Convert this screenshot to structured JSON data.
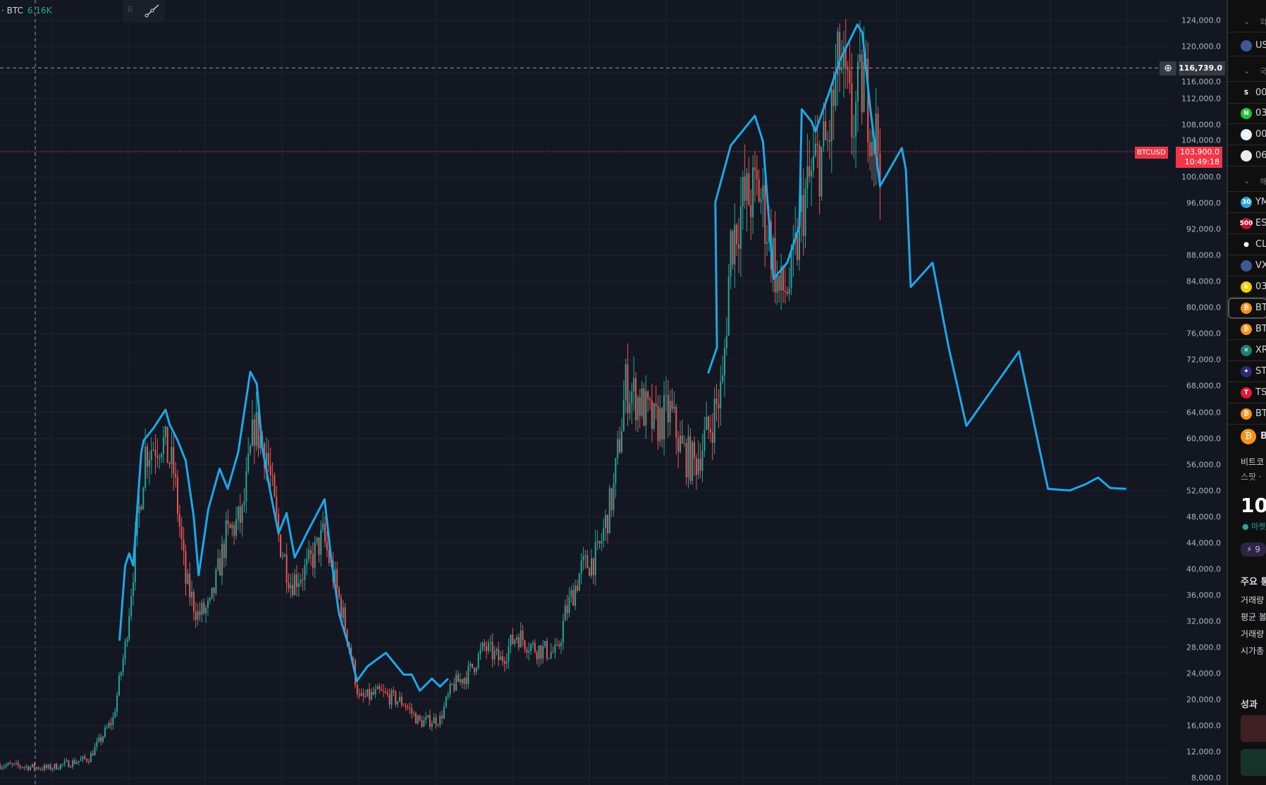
{
  "legend": {
    "symbol": "· BTC",
    "volume": "6.16K"
  },
  "toolbar": {
    "drag_icon": "drag-handle-icon",
    "draw_icon": "trend-line-icon"
  },
  "crosshair": {
    "price_label": "116,739.0",
    "price": 116739
  },
  "last_price": {
    "symbol": "BTCUSD",
    "price": "103,900.0",
    "countdown": "10:49:18",
    "value": 103900
  },
  "colors": {
    "background": "#131722",
    "up": "#26a69a",
    "down": "#ef5350",
    "drawing": "#1ea7e8",
    "last_price": "#f23645"
  },
  "chart_data": {
    "type": "candlestick",
    "title": "",
    "ylim": [
      8000,
      124000
    ],
    "y_ticks": [
      "124,000.0",
      "120,000.0",
      "116,000.0",
      "112,000.0",
      "108,000.0",
      "104,000.0",
      "100,000.0",
      "96,000.0",
      "92,000.0",
      "88,000.0",
      "84,000.0",
      "80,000.0",
      "76,000.0",
      "72,000.0",
      "68,000.0",
      "64,000.0",
      "60,000.0",
      "56,000.0",
      "52,000.0",
      "48,000.0",
      "44,000.0",
      "40,000.0",
      "36,000.0",
      "32,000.0",
      "28,000.0",
      "24,000.0",
      "20,000.0",
      "16,000.0",
      "12,000.0",
      "8,000.0"
    ],
    "grid": true,
    "price_path": [
      [
        0,
        10000
      ],
      [
        12,
        9500
      ],
      [
        22,
        11000
      ],
      [
        28,
        17000
      ],
      [
        31,
        28000
      ],
      [
        33,
        40000
      ],
      [
        36,
        58000
      ],
      [
        40,
        60000
      ],
      [
        43,
        55000
      ],
      [
        46,
        38000
      ],
      [
        49,
        33000
      ],
      [
        52,
        34000
      ],
      [
        56,
        45000
      ],
      [
        60,
        48000
      ],
      [
        63,
        62000
      ],
      [
        66,
        58000
      ],
      [
        69,
        45000
      ],
      [
        72,
        38000
      ],
      [
        76,
        40000
      ],
      [
        80,
        45000
      ],
      [
        83,
        38000
      ],
      [
        86,
        30000
      ],
      [
        89,
        20000
      ],
      [
        94,
        21000
      ],
      [
        100,
        19500
      ],
      [
        104,
        16500
      ],
      [
        109,
        17000
      ],
      [
        112,
        22000
      ],
      [
        116,
        24000
      ],
      [
        120,
        28000
      ],
      [
        124,
        26000
      ],
      [
        128,
        30000
      ],
      [
        132,
        28000
      ],
      [
        138,
        27000
      ],
      [
        140,
        33000
      ],
      [
        144,
        40000
      ],
      [
        148,
        42000
      ],
      [
        152,
        52000
      ],
      [
        155,
        68000
      ],
      [
        158,
        66000
      ],
      [
        162,
        62000
      ],
      [
        166,
        64000
      ],
      [
        169,
        58000
      ],
      [
        172,
        56000
      ],
      [
        176,
        62000
      ],
      [
        179,
        68000
      ],
      [
        181,
        90000
      ],
      [
        184,
        96000
      ],
      [
        188,
        98000
      ],
      [
        191,
        90000
      ],
      [
        193,
        82000
      ],
      [
        196,
        84000
      ],
      [
        199,
        96000
      ],
      [
        202,
        102000
      ],
      [
        205,
        105000
      ],
      [
        208,
        118000
      ],
      [
        211,
        108000
      ],
      [
        214,
        115000
      ],
      [
        216,
        108000
      ],
      [
        218,
        104000
      ]
    ],
    "drawing": [
      [
        [
          29.6,
          29021
        ],
        [
          31,
          40523
        ],
        [
          32,
          42378
        ],
        [
          33,
          40523
        ],
        [
          35,
          57837
        ],
        [
          35.6,
          59692
        ],
        [
          38,
          61547
        ],
        [
          41,
          64391
        ],
        [
          42,
          62165
        ],
        [
          44,
          59692
        ],
        [
          46,
          56600
        ],
        [
          48,
          47943
        ],
        [
          49.2,
          39039
        ],
        [
          51.6,
          49180
        ],
        [
          54.4,
          55363
        ],
        [
          56.4,
          52271
        ],
        [
          59,
          57837
        ],
        [
          62,
          70204
        ],
        [
          63.6,
          68348
        ],
        [
          65,
          58455
        ],
        [
          67,
          51654
        ],
        [
          69,
          45470
        ],
        [
          71,
          48561
        ],
        [
          73,
          41759
        ],
        [
          76,
          45470
        ],
        [
          80.4,
          50664
        ],
        [
          82,
          41759
        ],
        [
          84,
          33103
        ],
        [
          86.4,
          28157
        ],
        [
          88.4,
          22838
        ],
        [
          91,
          25064
        ],
        [
          95.6,
          27166
        ],
        [
          100,
          23827
        ],
        [
          102,
          23827
        ],
        [
          104,
          21354
        ],
        [
          107,
          23209
        ],
        [
          109,
          22000
        ],
        [
          111,
          23209
        ]
      ],
      [
        [
          175.4,
          69956
        ],
        [
          177.6,
          73914
        ],
        [
          177.2,
          96174
        ],
        [
          181,
          104831
        ],
        [
          187,
          109407
        ],
        [
          189,
          105449
        ],
        [
          191.6,
          84426
        ],
        [
          195,
          86899
        ],
        [
          198,
          92464
        ],
        [
          198.6,
          110396
        ],
        [
          201,
          108541
        ],
        [
          202,
          107000
        ],
        [
          205,
          112251
        ],
        [
          208,
          117816
        ],
        [
          212.4,
          123382
        ],
        [
          213.6,
          122145
        ],
        [
          215.6,
          110396
        ],
        [
          218,
          98648
        ],
        [
          223.4,
          104460
        ],
        [
          224.4,
          101121
        ],
        [
          225.6,
          83189
        ],
        [
          231,
          86899
        ],
        [
          235,
          73914
        ],
        [
          239.4,
          61918
        ],
        [
          252.4,
          73295
        ],
        [
          256.4,
          61547
        ],
        [
          259.6,
          52271
        ],
        [
          265,
          52024
        ],
        [
          269,
          53000
        ],
        [
          272,
          54000
        ],
        [
          275,
          52400
        ],
        [
          279,
          52271
        ]
      ]
    ]
  },
  "sidebar": {
    "rows": [
      {
        "type": "section",
        "label": "외"
      },
      {
        "type": "item",
        "icon": "us-flag-icon",
        "color": "#3c5a9a",
        "glyph": "",
        "label": "US"
      },
      {
        "type": "section",
        "label": "국"
      },
      {
        "type": "item",
        "icon": "s-logo-icon",
        "color": "#111",
        "glyph": "S",
        "label": "00"
      },
      {
        "type": "item",
        "icon": "n-logo-icon",
        "color": "#1ec337",
        "glyph": "N",
        "label": "03"
      },
      {
        "type": "item",
        "icon": "h-logo-icon",
        "color": "#e6f2fa",
        "glyph": "H",
        "label": "00"
      },
      {
        "type": "item",
        "icon": "company-logo-icon",
        "color": "#e8efe8",
        "glyph": "",
        "label": "06"
      },
      {
        "type": "section",
        "label": "해"
      },
      {
        "type": "item",
        "icon": "dow-30-icon",
        "color": "#2aa0d8",
        "glyph": "30",
        "label": "YM"
      },
      {
        "type": "item",
        "icon": "sp-500-icon",
        "color": "#c8102e",
        "glyph": "500",
        "label": "ES"
      },
      {
        "type": "item",
        "icon": "oil-drop-icon",
        "color": "#0f0f0f",
        "glyph": "●",
        "label": "CL"
      },
      {
        "type": "item",
        "icon": "us-flag-icon",
        "color": "#3c5a9a",
        "glyph": "",
        "label": "VX"
      },
      {
        "type": "item",
        "icon": "k-logo-icon",
        "color": "#f5d000",
        "glyph": "k",
        "label": "03"
      },
      {
        "type": "item",
        "icon": "bitcoin-icon",
        "color": "#f7931a",
        "glyph": "₿",
        "label": "BT",
        "selected": true
      },
      {
        "type": "item",
        "icon": "bitcoin-icon",
        "color": "#f7931a",
        "glyph": "₿",
        "label": "BT"
      },
      {
        "type": "item",
        "icon": "xrp-icon",
        "color": "#1d7f6e",
        "glyph": "✕",
        "label": "XR"
      },
      {
        "type": "item",
        "icon": "stellar-icon",
        "color": "#2b2b7a",
        "glyph": "✦",
        "label": "ST"
      },
      {
        "type": "item",
        "icon": "tesla-icon",
        "color": "#e31937",
        "glyph": "T",
        "label": "TS"
      },
      {
        "type": "item",
        "icon": "bitcoin-icon",
        "color": "#f7931a",
        "glyph": "₿",
        "label": "BT"
      }
    ],
    "detail": {
      "symbol": "B",
      "name": "비트코",
      "type": "스팟 ·",
      "price": "10",
      "market_status": "마켓",
      "badge": "9",
      "stats_title": "주요 통",
      "stats": [
        "거래량",
        "평균 볼",
        "거래량",
        "시가총"
      ],
      "performance_title": "성과"
    }
  }
}
